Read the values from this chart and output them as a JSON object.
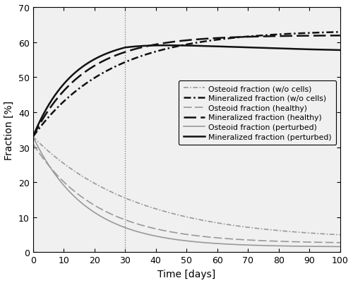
{
  "xlabel": "Time [days]",
  "ylabel": "Fraction [%]",
  "xlim": [
    0,
    100
  ],
  "ylim": [
    0,
    70
  ],
  "xticks": [
    0,
    10,
    20,
    30,
    40,
    50,
    60,
    70,
    80,
    90,
    100
  ],
  "yticks": [
    0,
    10,
    20,
    30,
    40,
    50,
    60,
    70
  ],
  "vline_x": 30,
  "bg_color": "#f0f0f0",
  "figsize": [
    5.0,
    4.02
  ],
  "dpi": 100,
  "legend_fontsize": 7.8
}
